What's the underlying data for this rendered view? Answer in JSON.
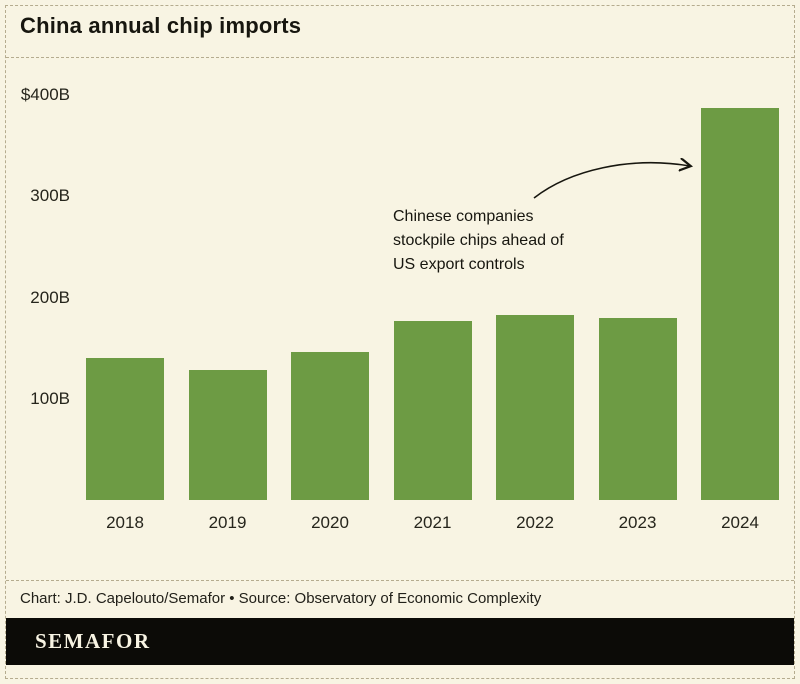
{
  "colors": {
    "background": "#f8f4e3",
    "bar": "#6d9b44",
    "text": "#17160f",
    "border_dash": "#b5ac8f",
    "banner_bg": "#0c0b07",
    "banner_text": "#f8f4e3"
  },
  "header": {
    "title": "China annual chip imports"
  },
  "chart_data": {
    "type": "bar",
    "title": "China annual chip imports",
    "categories": [
      "2018",
      "2019",
      "2020",
      "2021",
      "2022",
      "2023",
      "2024"
    ],
    "values": [
      140,
      128,
      146,
      177,
      183,
      180,
      387
    ],
    "unit": "USD billions",
    "xlabel": "",
    "ylabel": "",
    "ylim": [
      0,
      400
    ],
    "yticks": [
      {
        "value": 100,
        "label": "100B"
      },
      {
        "value": 200,
        "label": "200B"
      },
      {
        "value": 300,
        "label": "300B"
      },
      {
        "value": 400,
        "label": "$400B"
      }
    ],
    "grid": false,
    "legend": false,
    "bar_color": "#6d9b44",
    "annotation": {
      "text": "Chinese companies\nstockpile chips ahead of\nUS export controls",
      "target_category": "2024"
    }
  },
  "footer": {
    "credit": "Chart: J.D. Capelouto/Semafor • Source: Observatory of Economic Complexity"
  },
  "brand": {
    "logo": "SEMAFOR"
  }
}
